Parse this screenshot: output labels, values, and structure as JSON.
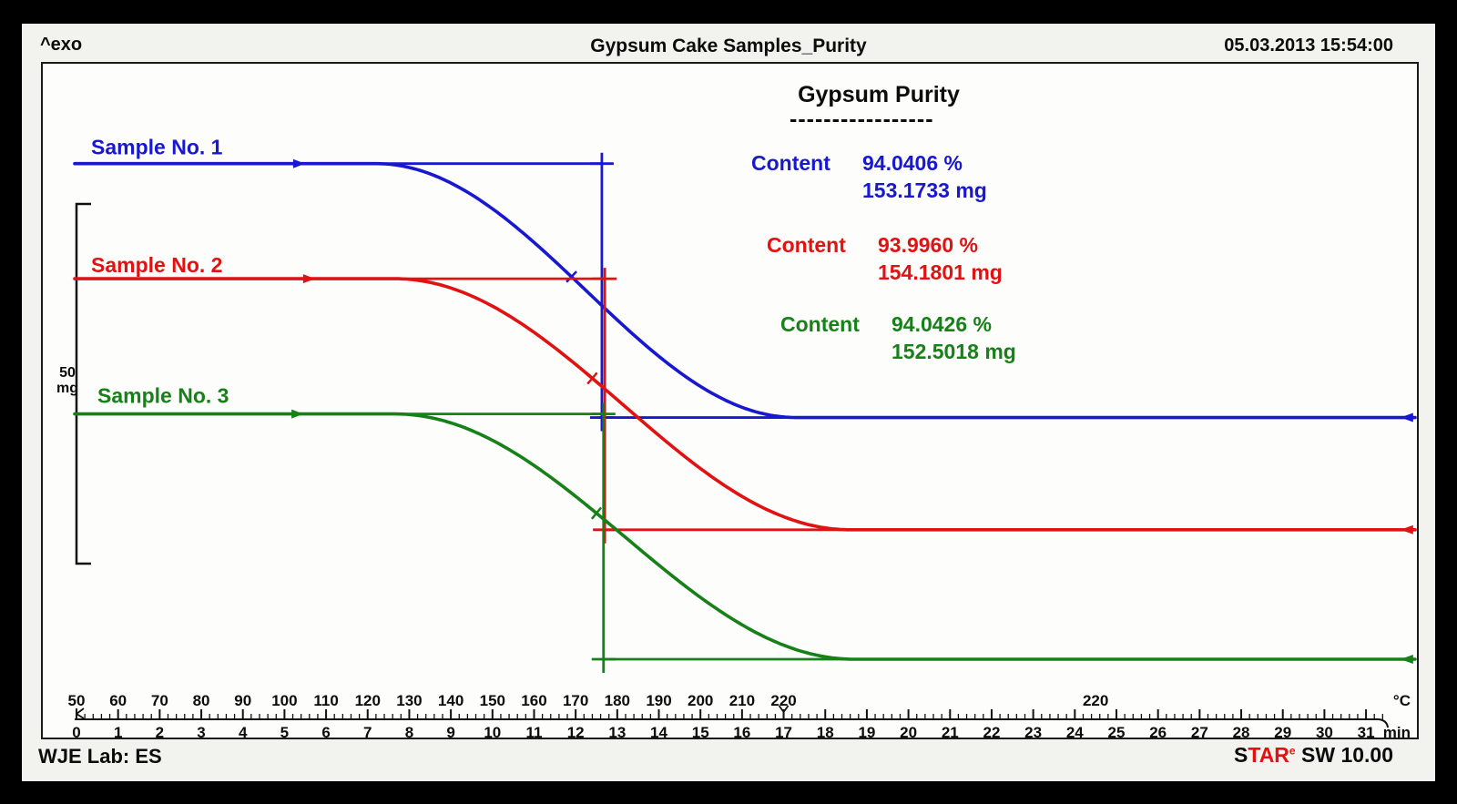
{
  "header": {
    "exo_label": "^exo",
    "title": "Gypsum Cake Samples_Purity",
    "datetime": "05.03.2013 15:54:00"
  },
  "scale_bar": {
    "value": "50",
    "unit": "mg"
  },
  "annotation": {
    "title": "Gypsum Purity",
    "separator": "-----------------",
    "entries": [
      {
        "label": "Content",
        "pct": "94.0406 %",
        "mg": "153.1733 mg",
        "color": "#1818d0"
      },
      {
        "label": "Content",
        "pct": "93.9960 %",
        "mg": "154.1801 mg",
        "color": "#e01212"
      },
      {
        "label": "Content",
        "pct": "94.0426 %",
        "mg": "152.5018 mg",
        "color": "#178119"
      }
    ]
  },
  "footer": {
    "lab": "WJE Lab: ES",
    "software_s": "S",
    "software_tar": "TAR",
    "software_sup": "e",
    "software_suffix": " SW 10.00"
  },
  "chart_data": {
    "type": "line",
    "title": "Gypsum Cake Samples_Purity",
    "y_scale_bar": {
      "mg": 50,
      "label": "50 mg"
    },
    "x_axis_temperature": {
      "unit": "°C",
      "ramp_ticks": [
        50,
        60,
        70,
        80,
        90,
        100,
        110,
        120,
        130,
        140,
        150,
        160,
        170,
        180,
        190,
        200,
        210,
        220
      ],
      "ramp_rate_c_per_min": 10,
      "ramp_end_min": 17,
      "isothermal_label": "220",
      "isothermal_label_min": 24.5
    },
    "x_axis_time": {
      "unit": "min",
      "ticks": [
        0,
        1,
        2,
        3,
        4,
        5,
        6,
        7,
        8,
        9,
        10,
        11,
        12,
        13,
        14,
        15,
        16,
        17,
        18,
        19,
        20,
        21,
        22,
        23,
        24,
        25,
        26,
        27,
        28,
        29,
        30,
        31
      ],
      "minor_tick_min": 0.2,
      "range": [
        0,
        31.3
      ]
    },
    "series": [
      {
        "name": "Sample No. 1",
        "color": "#1818d0",
        "content_pct": 94.0406,
        "content_mg": 153.1733,
        "initial_mg": 68.9,
        "final_mg": 33.6,
        "descent_start_min": 7.2,
        "descent_end_min": 17.3,
        "marker_min": 12.63,
        "mid_tick_min": 11.9,
        "arrow_min": 5.34,
        "end_arrow_min": 31.98
      },
      {
        "name": "Sample No. 2",
        "color": "#e01212",
        "content_pct": 93.996,
        "content_mg": 154.1801,
        "initial_mg": 52.9,
        "final_mg": 18.0,
        "descent_start_min": 7.65,
        "descent_end_min": 18.6,
        "marker_min": 12.7,
        "mid_tick_min": 12.4,
        "arrow_min": 5.58,
        "end_arrow_min": 31.98
      },
      {
        "name": "Sample No. 3",
        "color": "#178119",
        "content_pct": 94.0426,
        "content_mg": 152.5018,
        "initial_mg": 34.1,
        "final_mg": 0.0,
        "descent_start_min": 7.65,
        "descent_end_min": 18.7,
        "marker_min": 12.67,
        "mid_tick_min": 12.5,
        "arrow_min": 5.3,
        "end_arrow_min": 31.98
      }
    ]
  }
}
